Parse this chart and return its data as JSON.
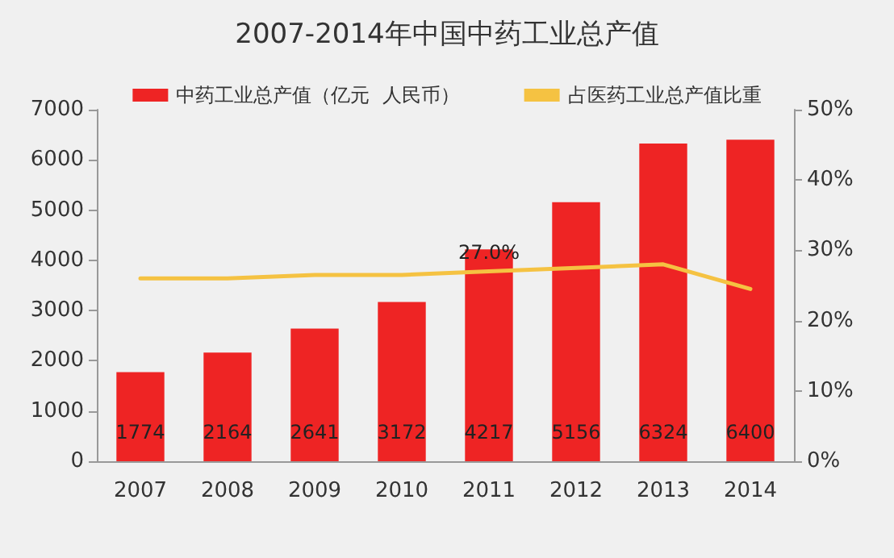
{
  "chart_data": {
    "type": "bar",
    "title": "2007-2014年中国中药工业总产值",
    "categories": [
      "2007",
      "2008",
      "2009",
      "2010",
      "2011",
      "2012",
      "2013",
      "2014"
    ],
    "series": [
      {
        "name": "中药工业总产值（亿元  人民币）",
        "color": "#ee2424",
        "values": [
          1774,
          2164,
          2641,
          3172,
          4217,
          5156,
          6324,
          6400
        ],
        "value_labels": [
          "1774",
          "2164",
          "2641",
          "3172",
          "4217",
          "5156",
          "6324",
          "6400"
        ]
      },
      {
        "name": "占医药工业总产值比重",
        "type": "line",
        "axis": "y2",
        "color": "#f5c242",
        "values": [
          26,
          26,
          26.5,
          26.5,
          27,
          27.5,
          28,
          24.5
        ],
        "value_labels": [
          null,
          null,
          null,
          null,
          "27.0%",
          null,
          null,
          null
        ]
      }
    ],
    "ylim": [
      0,
      7000
    ],
    "yticks": [
      0,
      1000,
      2000,
      3000,
      4000,
      5000,
      6000,
      7000
    ],
    "y2lim": [
      0,
      50
    ],
    "y2ticks": [
      {
        "value": 0,
        "label": "0%"
      },
      {
        "value": 10,
        "label": "10%"
      },
      {
        "value": 20,
        "label": "20%"
      },
      {
        "value": 30,
        "label": "30%"
      },
      {
        "value": 40,
        "label": "40%"
      },
      {
        "value": 50,
        "label": "50%"
      }
    ],
    "grid": false,
    "legend": "top",
    "marker": "none"
  }
}
